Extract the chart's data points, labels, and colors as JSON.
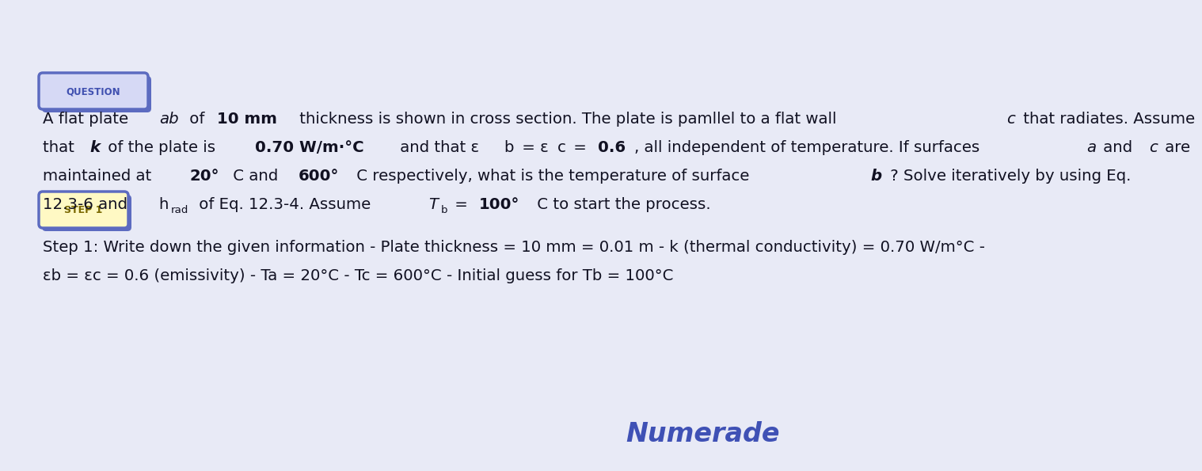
{
  "background_color": "#E8EAF6",
  "title": "QUESTION",
  "step_label": "STEP 1",
  "step1_line1": "Step 1: Write down the given information - Plate thickness = 10 mm = 0.01 m - k (thermal conductivity) = 0.70 W/m°C -",
  "step1_line2": "εb = εc = 0.6 (emissivity) - Ta = 20°C - Tc = 600°C - Initial guess for Tb = 100°C",
  "numerade_text": "Numerade",
  "question_box_color": "#5C6BC0",
  "question_box_bg": "#D6D9F5",
  "question_text_color": "#4050B0",
  "step_box_color": "#5C6BC0",
  "step_box_bg": "#FFF9C4",
  "step_text_color": "#7A6800",
  "body_text_color": "#111122",
  "numerade_color": "#3F51B5"
}
